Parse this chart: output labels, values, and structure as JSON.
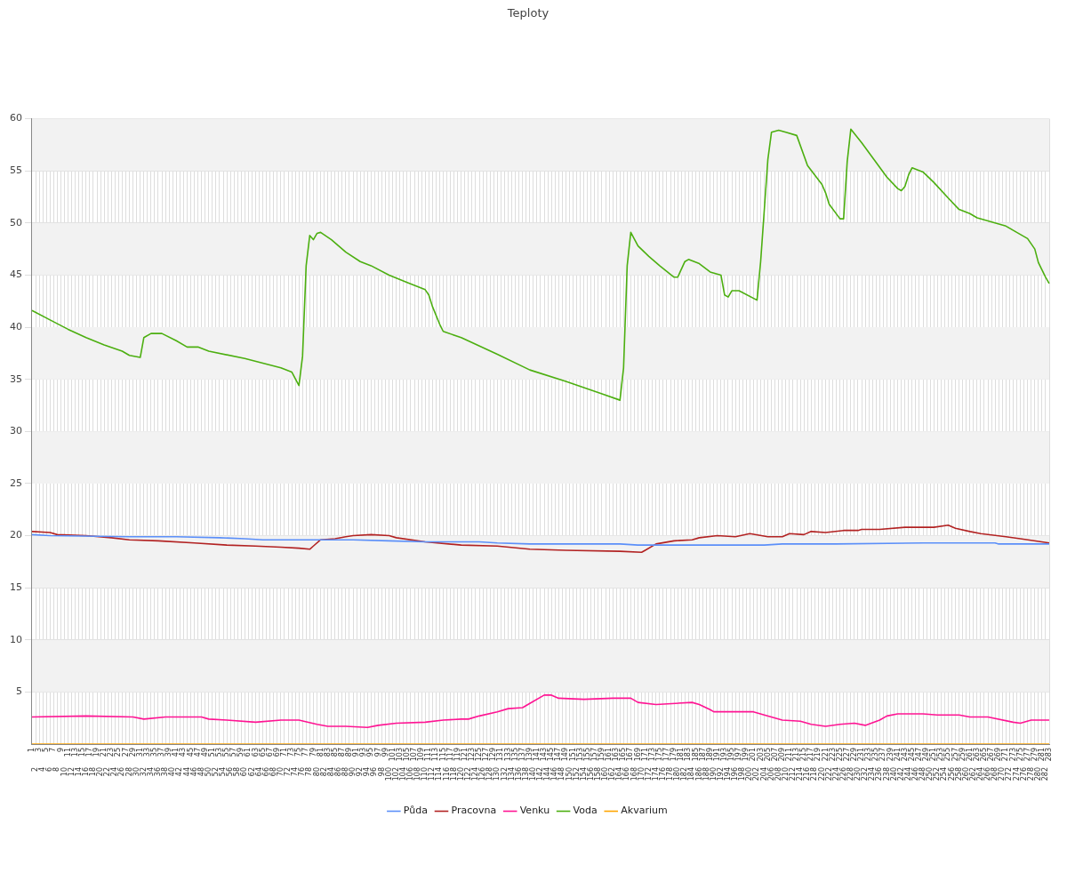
{
  "chart_data": {
    "type": "line",
    "title": "Teploty",
    "categories": [
      "1",
      "2",
      "3",
      "4",
      "5",
      "6",
      "7",
      "8",
      "9",
      "10",
      "11",
      "12",
      "13",
      "14",
      "15",
      "16",
      "17",
      "18",
      "19",
      "20",
      "21",
      "22",
      "23",
      "24",
      "25",
      "26",
      "27",
      "28",
      "29",
      "30",
      "31",
      "32",
      "33",
      "34",
      "35",
      "36",
      "37",
      "38",
      "39",
      "40",
      "41",
      "42",
      "43",
      "44",
      "45",
      "46",
      "47",
      "48",
      "49",
      "50",
      "51",
      "52",
      "53",
      "54",
      "55",
      "56",
      "57",
      "58",
      "59",
      "60",
      "61",
      "62",
      "63",
      "64",
      "65",
      "66",
      "67",
      "68",
      "69",
      "70",
      "71",
      "72",
      "73",
      "74",
      "75",
      "76",
      "77",
      "78",
      "79",
      "80",
      "81",
      "82",
      "83",
      "84",
      "85",
      "86",
      "87",
      "88",
      "89",
      "90",
      "91",
      "92",
      "93",
      "94",
      "95",
      "96",
      "97",
      "98",
      "99",
      "100",
      "101",
      "102",
      "103",
      "104",
      "105",
      "106",
      "107",
      "108",
      "109",
      "110",
      "111",
      "112",
      "113",
      "114",
      "115",
      "116",
      "117",
      "118",
      "119",
      "120",
      "121",
      "122",
      "123",
      "124",
      "125",
      "126",
      "127",
      "128",
      "129",
      "130",
      "131",
      "132",
      "133",
      "134",
      "135",
      "136",
      "137",
      "138",
      "139",
      "140",
      "141",
      "142",
      "143",
      "144",
      "145",
      "146",
      "147",
      "148",
      "149",
      "150",
      "151",
      "152",
      "153",
      "154",
      "155",
      "156",
      "157",
      "158",
      "159",
      "160",
      "161",
      "162",
      "163",
      "164",
      "165",
      "166",
      "167",
      "168",
      "169",
      "170",
      "171",
      "172",
      "173",
      "174",
      "175",
      "176",
      "177",
      "178",
      "179",
      "180",
      "181",
      "182",
      "183",
      "184",
      "185",
      "186",
      "187",
      "188",
      "189",
      "190",
      "191",
      "192",
      "193",
      "194",
      "195",
      "196",
      "197",
      "198",
      "199",
      "200",
      "201",
      "202",
      "203",
      "204",
      "205",
      "206",
      "207",
      "208",
      "209",
      "210",
      "211",
      "212",
      "213",
      "214",
      "215",
      "216",
      "217",
      "218",
      "219",
      "220",
      "221",
      "222",
      "223",
      "224",
      "225",
      "226",
      "227",
      "228",
      "229",
      "230",
      "231",
      "232",
      "233",
      "234",
      "235",
      "236",
      "237",
      "238",
      "239",
      "240",
      "241",
      "242",
      "243",
      "244",
      "245",
      "246",
      "247",
      "248",
      "249",
      "250",
      "251",
      "252",
      "253",
      "254",
      "255",
      "256",
      "257",
      "258",
      "259",
      "260",
      "261",
      "262",
      "263",
      "264",
      "265",
      "266",
      "267",
      "268",
      "269",
      "270",
      "271",
      "272",
      "273",
      "274",
      "275",
      "276",
      "277",
      "278",
      "279",
      "280",
      "281",
      "282",
      "283"
    ],
    "series": [
      {
        "name": "Půda",
        "color": "#5b8ff9",
        "x": [
          "1",
          "6",
          "28",
          "41",
          "53",
          "60",
          "65",
          "80",
          "90",
          "100",
          "110",
          "125",
          "130",
          "139",
          "164",
          "169",
          "189",
          "204",
          "209",
          "224",
          "248",
          "268",
          "269",
          "283"
        ],
        "values": [
          20.1,
          20.0,
          19.9,
          19.9,
          19.8,
          19.7,
          19.6,
          19.6,
          19.6,
          19.5,
          19.4,
          19.4,
          19.3,
          19.2,
          19.2,
          19.1,
          19.1,
          19.1,
          19.2,
          19.2,
          19.3,
          19.3,
          19.2,
          19.2
        ]
      },
      {
        "name": "Pracovna",
        "color": "#b22222",
        "x": [
          "1",
          "6",
          "8",
          "16",
          "23",
          "28",
          "36",
          "46",
          "55",
          "63",
          "70",
          "75",
          "78",
          "79",
          "81",
          "85",
          "88",
          "90",
          "95",
          "100",
          "102",
          "110",
          "120",
          "130",
          "139",
          "149",
          "164",
          "170",
          "171",
          "174",
          "179",
          "184",
          "186",
          "191",
          "196",
          "200",
          "205",
          "209",
          "211",
          "215",
          "217",
          "221",
          "226",
          "230",
          "231",
          "236",
          "243",
          "251",
          "255",
          "257",
          "261",
          "264",
          "271",
          "275",
          "283"
        ],
        "values": [
          20.4,
          20.3,
          20.1,
          20.0,
          19.8,
          19.6,
          19.5,
          19.3,
          19.1,
          19.0,
          18.9,
          18.8,
          18.7,
          19.0,
          19.6,
          19.7,
          19.9,
          20.0,
          20.1,
          20.0,
          19.8,
          19.4,
          19.1,
          19.0,
          18.7,
          18.6,
          18.5,
          18.4,
          18.6,
          19.2,
          19.5,
          19.6,
          19.8,
          20.0,
          19.9,
          20.2,
          19.9,
          19.9,
          20.2,
          20.1,
          20.4,
          20.3,
          20.5,
          20.5,
          20.6,
          20.6,
          20.8,
          20.8,
          21.0,
          20.7,
          20.4,
          20.2,
          19.9,
          19.7,
          19.3
        ]
      },
      {
        "name": "Venku",
        "color": "#ff1493",
        "x": [
          "1",
          "16",
          "29",
          "32",
          "38",
          "48",
          "50",
          "55",
          "63",
          "70",
          "75",
          "80",
          "83",
          "88",
          "94",
          "97",
          "102",
          "110",
          "115",
          "120",
          "122",
          "125",
          "130",
          "133",
          "137",
          "139",
          "143",
          "145",
          "147",
          "154",
          "162",
          "167",
          "169",
          "174",
          "184",
          "186",
          "189",
          "190",
          "196",
          "201",
          "204",
          "209",
          "214",
          "217",
          "221",
          "225",
          "229",
          "232",
          "236",
          "238",
          "241",
          "243",
          "248",
          "252",
          "258",
          "261",
          "266",
          "273",
          "275",
          "278",
          "283"
        ],
        "values": [
          2.6,
          2.7,
          2.6,
          2.4,
          2.6,
          2.6,
          2.4,
          2.3,
          2.1,
          2.3,
          2.3,
          1.9,
          1.7,
          1.7,
          1.6,
          1.8,
          2.0,
          2.1,
          2.3,
          2.4,
          2.4,
          2.7,
          3.1,
          3.4,
          3.5,
          3.9,
          4.7,
          4.7,
          4.4,
          4.3,
          4.4,
          4.4,
          4.0,
          3.8,
          4.0,
          3.8,
          3.3,
          3.1,
          3.1,
          3.1,
          2.8,
          2.3,
          2.2,
          1.9,
          1.7,
          1.9,
          2.0,
          1.8,
          2.3,
          2.7,
          2.9,
          2.9,
          2.9,
          2.8,
          2.8,
          2.6,
          2.6,
          2.1,
          2.0,
          2.3,
          2.3
        ]
      },
      {
        "name": "Voda",
        "color": "#4caf10",
        "x": [
          "1",
          "6",
          "11",
          "16",
          "21",
          "26",
          "28",
          "31",
          "32",
          "34",
          "37",
          "41",
          "44",
          "47",
          "50",
          "60",
          "70",
          "73",
          "75",
          "76",
          "77",
          "78",
          "79",
          "80",
          "81",
          "84",
          "86",
          "88",
          "92",
          "95",
          "100",
          "105",
          "110",
          "111",
          "112",
          "114",
          "115",
          "120",
          "130",
          "139",
          "149",
          "159",
          "164",
          "165",
          "166",
          "167",
          "169",
          "172",
          "175",
          "179",
          "180",
          "182",
          "183",
          "186",
          "189",
          "192",
          "193",
          "194",
          "195",
          "197",
          "202",
          "203",
          "205",
          "206",
          "208",
          "210",
          "213",
          "216",
          "220",
          "221",
          "222",
          "225",
          "226",
          "227",
          "228",
          "231",
          "238",
          "241",
          "242",
          "243",
          "244",
          "245",
          "248",
          "251",
          "255",
          "258",
          "261",
          "263",
          "271",
          "274",
          "277",
          "279",
          "280",
          "282",
          "283"
        ],
        "values": [
          41.6,
          40.7,
          39.8,
          39.0,
          38.3,
          37.7,
          37.3,
          37.1,
          39.0,
          39.4,
          39.4,
          38.7,
          38.1,
          38.1,
          37.7,
          37.0,
          36.1,
          35.7,
          34.4,
          37.2,
          45.9,
          48.8,
          48.4,
          49.0,
          49.1,
          48.4,
          47.8,
          47.2,
          46.3,
          45.9,
          45.0,
          44.3,
          43.6,
          43.1,
          42.0,
          40.3,
          39.6,
          39.0,
          37.4,
          35.9,
          34.8,
          33.6,
          33.0,
          36.1,
          45.9,
          49.1,
          47.8,
          46.8,
          45.9,
          44.8,
          44.8,
          46.3,
          46.5,
          46.1,
          45.3,
          45.0,
          43.1,
          42.9,
          43.5,
          43.5,
          42.6,
          46.3,
          56.1,
          58.7,
          58.9,
          58.7,
          58.4,
          55.5,
          53.7,
          52.9,
          51.8,
          50.4,
          50.4,
          55.9,
          59.0,
          57.7,
          54.4,
          53.3,
          53.1,
          53.5,
          54.6,
          55.3,
          54.9,
          53.9,
          52.4,
          51.3,
          50.9,
          50.5,
          49.7,
          49.1,
          48.5,
          47.5,
          46.2,
          44.8,
          44.2
        ]
      },
      {
        "name": "Akvarium",
        "color": "#ffa500",
        "x": [
          "1",
          "283"
        ],
        "values": [
          0,
          0
        ]
      }
    ],
    "ylim": [
      0,
      60
    ],
    "yticks": [
      5,
      10,
      15,
      20,
      25,
      30,
      35,
      40,
      45,
      50,
      55,
      60
    ],
    "bands": [
      {
        "axis": "y",
        "from": 5,
        "to": 10,
        "color": "#f2f2f2"
      },
      {
        "axis": "y",
        "from": 15,
        "to": 20,
        "color": "#f2f2f2"
      },
      {
        "axis": "y",
        "from": 25,
        "to": 30,
        "color": "#f2f2f2"
      },
      {
        "axis": "y",
        "from": 35,
        "to": 40,
        "color": "#f2f2f2"
      },
      {
        "axis": "y",
        "from": 45,
        "to": 50,
        "color": "#f2f2f2"
      },
      {
        "axis": "y",
        "from": 55,
        "to": 60,
        "color": "#f2f2f2"
      }
    ],
    "grid": true,
    "legend": "bottom",
    "marker": "none",
    "line_style": "solid"
  }
}
